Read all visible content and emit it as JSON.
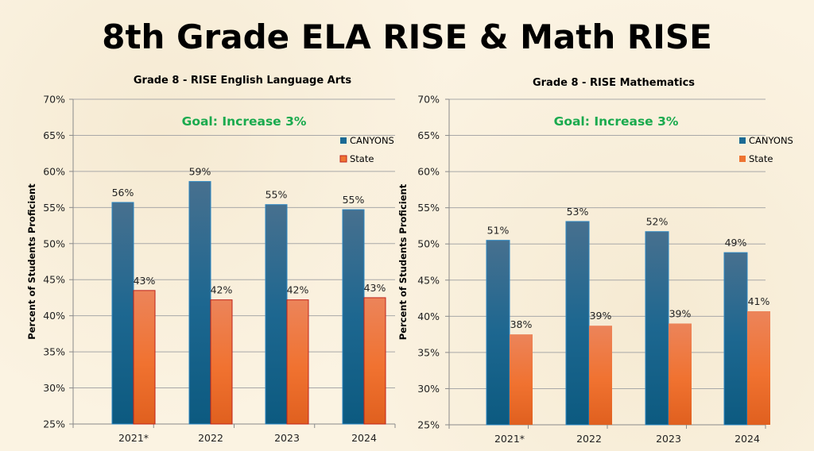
{
  "page": {
    "title": "8th Grade ELA RISE & Math RISE"
  },
  "colors": {
    "canyons": "#1b6a94",
    "state": "#ee7431",
    "goal": "#1aaa4e"
  },
  "chart_data": [
    {
      "type": "bar",
      "title": "Grade 8 - RISE English Language Arts",
      "annotation": "Goal: Increase 3%",
      "xlabel": "",
      "ylabel": "Percent of Students Proficient",
      "ylim": [
        25,
        70
      ],
      "yticks": [
        "25%",
        "30%",
        "35%",
        "40%",
        "45%",
        "50%",
        "55%",
        "60%",
        "65%",
        "70%"
      ],
      "ytick_values": [
        25,
        30,
        35,
        40,
        45,
        50,
        55,
        60,
        65,
        70
      ],
      "grid": true,
      "legend_position": "right",
      "categories": [
        "2021*",
        "2022",
        "2023",
        "2024"
      ],
      "series": [
        {
          "name": "CANYONS",
          "values": [
            55.7,
            58.6,
            55.4,
            54.7
          ],
          "labels": [
            "56%",
            "59%",
            "55%",
            "55%"
          ]
        },
        {
          "name": "State",
          "values": [
            43.5,
            42.2,
            42.2,
            42.5
          ],
          "labels": [
            "43%",
            "42%",
            "42%",
            "43%"
          ]
        }
      ]
    },
    {
      "type": "bar",
      "title": "Grade 8 - RISE Mathematics",
      "annotation": "Goal: Increase 3%",
      "xlabel": "",
      "ylabel": "Percent of Students Proficient",
      "ylim": [
        25,
        70
      ],
      "yticks": [
        "25%",
        "30%",
        "35%",
        "40%",
        "45%",
        "50%",
        "55%",
        "60%",
        "65%",
        "70%"
      ],
      "ytick_values": [
        25,
        30,
        35,
        40,
        45,
        50,
        55,
        60,
        65,
        70
      ],
      "grid": true,
      "legend_position": "right",
      "categories": [
        "2021*",
        "2022",
        "2023",
        "2024"
      ],
      "series": [
        {
          "name": "CANYONS",
          "values": [
            50.5,
            53.1,
            51.7,
            48.8
          ],
          "labels": [
            "51%",
            "53%",
            "52%",
            "49%"
          ]
        },
        {
          "name": "State",
          "values": [
            37.5,
            38.7,
            39.0,
            40.7
          ],
          "labels": [
            "38%",
            "39%",
            "39%",
            "41%"
          ]
        }
      ]
    }
  ]
}
